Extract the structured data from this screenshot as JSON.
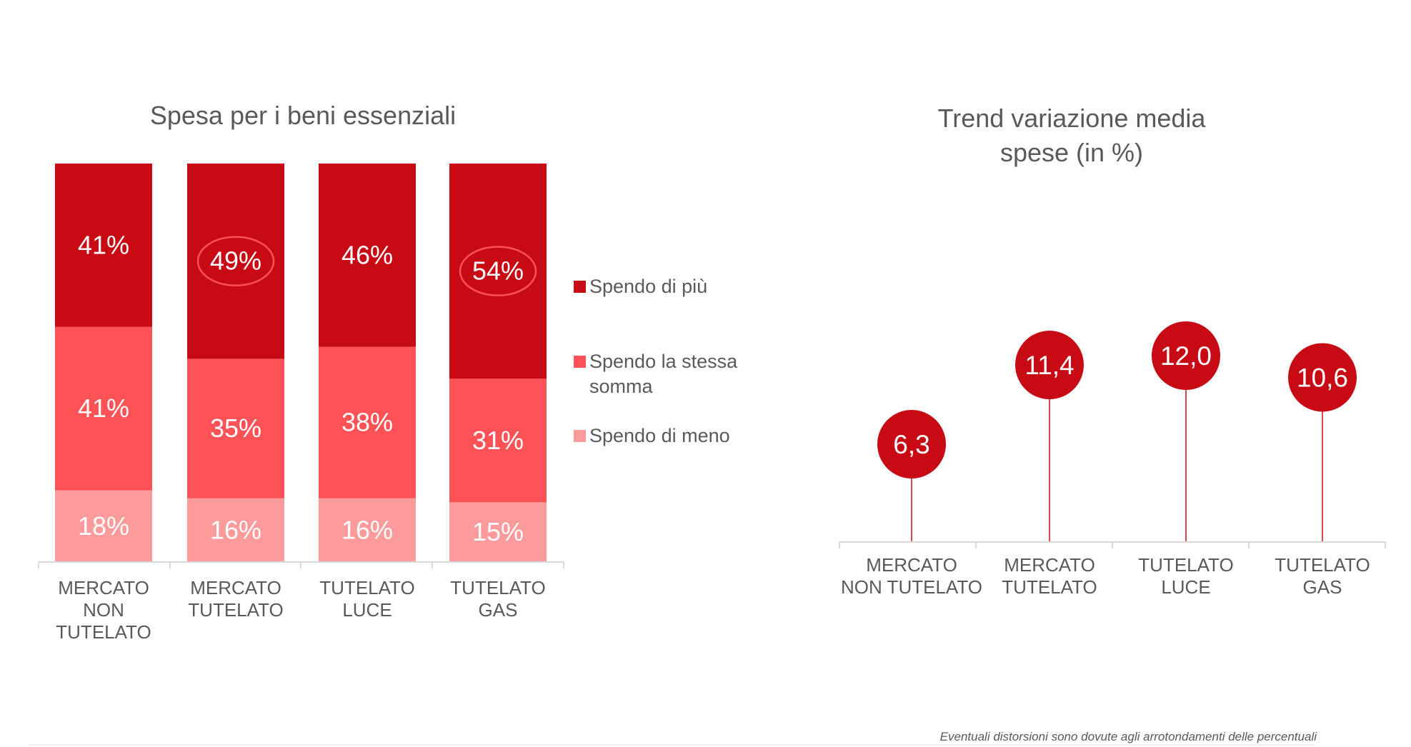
{
  "colors": {
    "spendo_di_piu": "#c80a14",
    "spendo_stessa": "#fe5256",
    "spendo_meno": "#fd9a9b",
    "bubble": "#c80a14",
    "highlight_ring": "#fe5256",
    "axis": "#d9d9d9",
    "text": "#595959"
  },
  "chart_data": [
    {
      "type": "bar",
      "stacked": true,
      "normalized": true,
      "title": "Spesa per i beni essenziali",
      "categories": [
        "MERCATO NON TUTELATO",
        "MERCATO TUTELATO",
        "TUTELATO LUCE",
        "TUTELATO GAS"
      ],
      "category_lines": [
        [
          "MERCATO",
          "NON",
          "TUTELATO"
        ],
        [
          "MERCATO",
          "TUTELATO"
        ],
        [
          "TUTELATO",
          "LUCE"
        ],
        [
          "TUTELATO",
          "GAS"
        ]
      ],
      "series": [
        {
          "name": "Spendo di meno",
          "values": [
            18,
            16,
            16,
            15
          ],
          "labels": [
            "18%",
            "16%",
            "16%",
            "15%"
          ]
        },
        {
          "name": "Spendo la stessa somma",
          "values": [
            41,
            35,
            38,
            31
          ],
          "labels": [
            "41%",
            "35%",
            "38%",
            "31%"
          ]
        },
        {
          "name": "Spendo di più",
          "values": [
            41,
            49,
            46,
            54
          ],
          "labels": [
            "41%",
            "49%",
            "46%",
            "54%"
          ]
        }
      ],
      "highlighted": [
        {
          "series": "Spendo di più",
          "category": "MERCATO TUTELATO"
        },
        {
          "series": "Spendo di più",
          "category": "TUTELATO GAS"
        }
      ],
      "legend": [
        "Spendo di più",
        "Spendo la stessa somma",
        "Spendo di meno"
      ],
      "legend_placement": "right",
      "ylim": [
        0,
        100
      ],
      "xlabel": "",
      "ylabel": "",
      "grid": false
    },
    {
      "type": "scatter",
      "style": "lollipop",
      "title": "Trend variazione media spese (in %)",
      "title_lines": [
        "Trend variazione media",
        "spese (in %)"
      ],
      "categories": [
        "MERCATO NON TUTELATO",
        "MERCATO TUTELATO",
        "TUTELATO LUCE",
        "TUTELATO GAS"
      ],
      "category_lines": [
        [
          "MERCATO",
          "NON TUTELATO"
        ],
        [
          "MERCATO",
          "TUTELATO"
        ],
        [
          "TUTELATO",
          "LUCE"
        ],
        [
          "TUTELATO",
          "GAS"
        ]
      ],
      "values": [
        6.3,
        11.4,
        12.0,
        10.6
      ],
      "labels": [
        "6,3",
        "11,4",
        "12,0",
        "10,6"
      ],
      "ylim": [
        0,
        14
      ],
      "xlabel": "",
      "ylabel": "",
      "grid": false
    }
  ],
  "footnote": "Eventuali distorsioni sono dovute agli arrotondamenti delle percentuali"
}
